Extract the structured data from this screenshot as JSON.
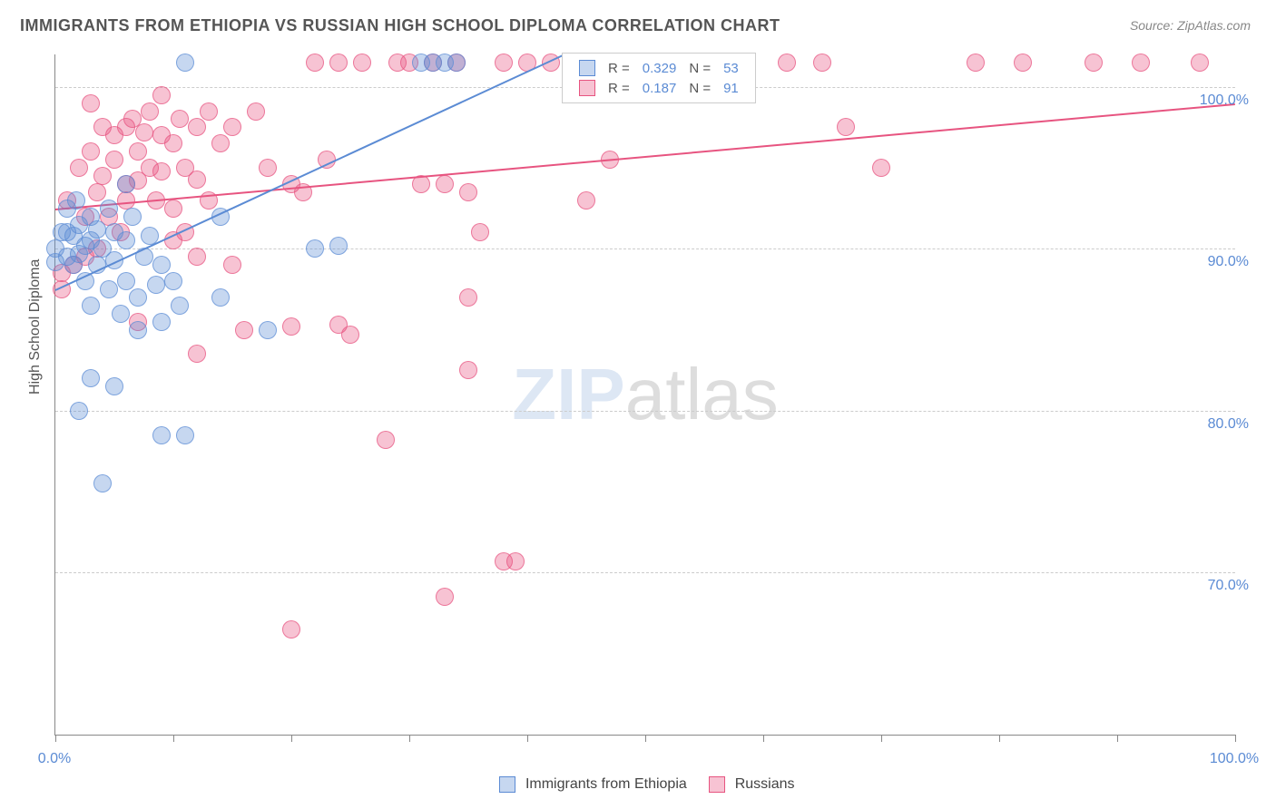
{
  "title": "IMMIGRANTS FROM ETHIOPIA VS RUSSIAN HIGH SCHOOL DIPLOMA CORRELATION CHART",
  "source": "Source: ZipAtlas.com",
  "y_axis_label": "High School Diploma",
  "watermark": {
    "part1": "ZIP",
    "part2": "atlas"
  },
  "chart": {
    "type": "scatter",
    "background_color": "#ffffff",
    "grid_color": "#cccccc",
    "axis_color": "#888888",
    "tick_label_color": "#5b8bd4",
    "xlim": [
      0,
      100
    ],
    "ylim": [
      60,
      102
    ],
    "x_ticks": [
      0,
      10,
      20,
      30,
      40,
      50,
      60,
      70,
      80,
      90,
      100
    ],
    "x_tick_labels": {
      "0": "0.0%",
      "100": "100.0%"
    },
    "y_gridlines": [
      70,
      80,
      90,
      100
    ],
    "y_tick_labels": {
      "70": "70.0%",
      "80": "80.0%",
      "90": "90.0%",
      "100": "100.0%"
    },
    "marker_radius": 9,
    "marker_opacity": 0.35,
    "marker_stroke_opacity": 0.7,
    "line_width": 2
  },
  "series": {
    "ethiopia": {
      "label": "Immigrants from Ethiopia",
      "color": "#5b8bd4",
      "R": "0.329",
      "N": "53",
      "trend": {
        "x1": 0,
        "y1": 87.5,
        "x2": 43,
        "y2": 102
      },
      "points": [
        [
          0,
          90
        ],
        [
          0,
          89.2
        ],
        [
          0.5,
          91
        ],
        [
          1,
          92.5
        ],
        [
          1,
          91
        ],
        [
          1,
          89.5
        ],
        [
          1.5,
          90.8
        ],
        [
          1.5,
          89
        ],
        [
          1.8,
          93
        ],
        [
          2,
          91.5
        ],
        [
          2,
          89.7
        ],
        [
          2.5,
          90.2
        ],
        [
          2.5,
          88
        ],
        [
          3,
          92
        ],
        [
          3,
          90.5
        ],
        [
          3,
          86.5
        ],
        [
          3.5,
          91.2
        ],
        [
          3.5,
          89
        ],
        [
          4,
          90
        ],
        [
          4.5,
          92.5
        ],
        [
          4.5,
          87.5
        ],
        [
          5,
          91
        ],
        [
          5,
          89.3
        ],
        [
          5.5,
          86
        ],
        [
          6,
          90.5
        ],
        [
          6,
          88
        ],
        [
          6.5,
          92
        ],
        [
          7,
          87
        ],
        [
          7,
          85
        ],
        [
          7.5,
          89.5
        ],
        [
          8,
          90.8
        ],
        [
          8.5,
          87.8
        ],
        [
          9,
          89
        ],
        [
          9,
          85.5
        ],
        [
          10,
          88
        ],
        [
          10.5,
          86.5
        ],
        [
          3,
          82
        ],
        [
          5,
          81.5
        ],
        [
          2,
          80
        ],
        [
          4,
          75.5
        ],
        [
          9,
          78.5
        ],
        [
          11,
          78.5
        ],
        [
          18,
          85
        ],
        [
          14,
          87
        ],
        [
          11,
          101.5
        ],
        [
          31,
          101.5
        ],
        [
          32,
          101.5
        ],
        [
          33,
          101.5
        ],
        [
          34,
          101.5
        ],
        [
          22,
          90
        ],
        [
          24,
          90.2
        ],
        [
          14,
          92
        ],
        [
          6,
          94
        ]
      ]
    },
    "russians": {
      "label": "Russians",
      "color": "#e75480",
      "R": "0.187",
      "N": "91",
      "trend": {
        "x1": 0,
        "y1": 92.5,
        "x2": 100,
        "y2": 99
      },
      "points": [
        [
          0.5,
          87.5
        ],
        [
          1,
          93
        ],
        [
          1.5,
          89
        ],
        [
          2,
          95
        ],
        [
          2.5,
          92
        ],
        [
          2.5,
          89.5
        ],
        [
          3,
          96
        ],
        [
          3.5,
          93.5
        ],
        [
          3.5,
          90
        ],
        [
          4,
          97.5
        ],
        [
          4,
          94.5
        ],
        [
          4.5,
          92
        ],
        [
          5,
          97
        ],
        [
          5,
          95.5
        ],
        [
          5.5,
          91
        ],
        [
          6,
          97.5
        ],
        [
          6,
          94
        ],
        [
          6.5,
          98
        ],
        [
          7,
          96
        ],
        [
          7,
          94.2
        ],
        [
          7.5,
          97.2
        ],
        [
          8,
          98.5
        ],
        [
          8,
          95
        ],
        [
          8.5,
          93
        ],
        [
          9,
          97
        ],
        [
          9,
          94.8
        ],
        [
          10,
          96.5
        ],
        [
          10,
          92.5
        ],
        [
          10.5,
          98
        ],
        [
          11,
          95
        ],
        [
          12,
          97.5
        ],
        [
          12,
          94.3
        ],
        [
          13,
          98.5
        ],
        [
          13,
          93
        ],
        [
          14,
          96.5
        ],
        [
          15,
          97.5
        ],
        [
          15,
          89
        ],
        [
          17,
          98.5
        ],
        [
          18,
          95
        ],
        [
          20,
          94
        ],
        [
          21,
          93.5
        ],
        [
          22,
          101.5
        ],
        [
          23,
          95.5
        ],
        [
          24,
          101.5
        ],
        [
          26,
          101.5
        ],
        [
          29,
          101.5
        ],
        [
          30,
          101.5
        ],
        [
          31,
          94
        ],
        [
          32,
          101.5
        ],
        [
          33,
          94
        ],
        [
          34,
          101.5
        ],
        [
          35,
          93.5
        ],
        [
          36,
          91
        ],
        [
          38,
          101.5
        ],
        [
          40,
          101.5
        ],
        [
          42,
          101.5
        ],
        [
          45,
          93
        ],
        [
          47,
          95.5
        ],
        [
          50,
          101.5
        ],
        [
          55,
          101.5
        ],
        [
          58,
          101.5
        ],
        [
          62,
          101.5
        ],
        [
          65,
          101.5
        ],
        [
          67,
          97.5
        ],
        [
          70,
          95
        ],
        [
          78,
          101.5
        ],
        [
          82,
          101.5
        ],
        [
          88,
          101.5
        ],
        [
          97,
          101.5
        ],
        [
          10,
          90.5
        ],
        [
          12,
          89.5
        ],
        [
          7,
          85.5
        ],
        [
          16,
          85
        ],
        [
          20,
          85.2
        ],
        [
          24,
          85.3
        ],
        [
          25,
          84.7
        ],
        [
          12,
          83.5
        ],
        [
          28,
          78.2
        ],
        [
          35,
          87
        ],
        [
          35,
          82.5
        ],
        [
          38,
          70.7
        ],
        [
          39,
          70.7
        ],
        [
          33,
          68.5
        ],
        [
          20,
          66.5
        ],
        [
          0.5,
          88.5
        ],
        [
          3,
          99
        ],
        [
          9,
          99.5
        ],
        [
          6,
          93
        ],
        [
          11,
          91
        ],
        [
          48,
          101.5
        ],
        [
          92,
          101.5
        ]
      ]
    }
  },
  "stats_labels": {
    "R": "R =",
    "N": "N ="
  }
}
